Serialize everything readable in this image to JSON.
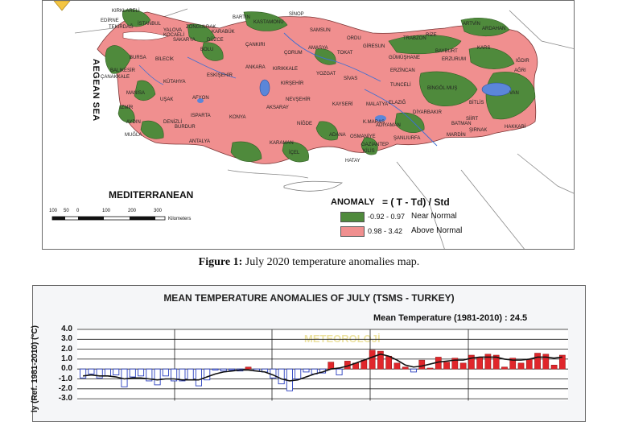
{
  "map": {
    "sea_labels": {
      "aegean": "AEGEAN SEA",
      "mediterranean": "MEDITERRANEAN"
    },
    "legend": {
      "title": "ANOMALY",
      "formula": "= ( T - Td) / Std",
      "classes": [
        {
          "range": "-0.92 - 0.97",
          "label": "Near Normal",
          "color": "#4f8a3c"
        },
        {
          "range": "0.98 - 3.42",
          "label": "Above Normal",
          "color": "#f08f8f"
        }
      ]
    },
    "scale_bar": {
      "ticks": [
        "100",
        "50",
        "0",
        "100",
        "200",
        "300"
      ],
      "unit": "Kilometers"
    },
    "cities": [
      "KIRKLARELİ",
      "EDİRNE",
      "TEKİRDAĞ",
      "İSTANBUL",
      "ZONGULDAK",
      "BARTIN",
      "KASTAMONU",
      "SİNOP",
      "KOCAELİ",
      "SAKARYA",
      "DÜZCE",
      "KARABÜK",
      "BOLU",
      "ÇANKIRI",
      "SAMSUN",
      "ORDU",
      "GİRESUN",
      "TRABZON",
      "RİZE",
      "ARTVİN",
      "ARDAHAN",
      "KARS",
      "IĞDIR",
      "AĞRI",
      "BAYBURT",
      "ERZURUM",
      "GÜMÜŞHANE",
      "ERZİNCAN",
      "TUNCELİ",
      "BİNGÖL",
      "MUŞ",
      "VAN",
      "BİTLİS",
      "SİİRT",
      "BATMAN",
      "HAKKARİ",
      "ŞIRNAK",
      "MARDİN",
      "DİYARBAKIR",
      "ELAZIĞ",
      "MALATYA",
      "ADIYAMAN",
      "ŞANLIURFA",
      "GAZİANTEP",
      "KİLİS",
      "HATAY",
      "OSMANİYE",
      "ADANA",
      "K.MARAŞ",
      "İÇEL",
      "KARAMAN",
      "NİĞDE",
      "KAYSERİ",
      "SİVAS",
      "TOKAT",
      "AMASYA",
      "ÇORUM",
      "YOZGAT",
      "KIRIKKALE",
      "ANKARA",
      "KIRŞEHİR",
      "NEVŞEHİR",
      "AKSARAY",
      "KONYA",
      "ISPARTA",
      "BURDUR",
      "ANTALYA",
      "MUĞLA",
      "DENİZLİ",
      "AYDIN",
      "İZMİR",
      "MANİSA",
      "UŞAK",
      "AFYON",
      "KÜTAHYA",
      "ESKİŞEHİR",
      "BİLECİK",
      "BURSA",
      "BALIKESİR",
      "ÇANAKKALE",
      "YALOVA"
    ]
  },
  "caption": {
    "prefix": "Figure 1:",
    "text": " July 2020 temperature anomalies map."
  },
  "chart": {
    "title": "MEAN TEMPERATURE ANOMALIES OF JULY (TSMS - TURKEY)",
    "note": "Mean Temperature (1981-2010) : 24.5",
    "ylabel": "ly (Ref. 1981-2010) (°C)",
    "watermark": "METEOROLOJİ",
    "colors": {
      "positive": "#e0262b",
      "negative": "#ffffff",
      "negative_edge": "#2a3fbf",
      "line": "#111111",
      "grid": "#1a1a1a"
    }
  },
  "chart_data": {
    "type": "bar",
    "ylabel": "ly (Ref. 1981-2010) (°C)",
    "y_ticks": [
      "4.0",
      "3.0",
      "2.0",
      "1.0",
      "0.0",
      "-1.0",
      "-2.0",
      "-3.0"
    ],
    "ylim": [
      -3.2,
      4.0
    ],
    "grid": true,
    "legend": "none",
    "values": [
      -0.9,
      -0.5,
      -0.9,
      -0.7,
      -0.6,
      -1.8,
      -0.8,
      -0.7,
      -1.2,
      -1.6,
      -0.7,
      -1.2,
      -1.2,
      -1.1,
      -1.7,
      -1.1,
      -0.1,
      -0.2,
      -0.1,
      -0.2,
      0.2,
      -0.2,
      -0.3,
      -0.9,
      -1.5,
      -2.2,
      -1.0,
      -0.3,
      -0.5,
      -0.4,
      0.7,
      -0.6,
      0.8,
      0.6,
      0.9,
      1.9,
      1.8,
      1.3,
      0.6,
      0.2,
      -0.3,
      0.9,
      0.1,
      1.2,
      0.7,
      1.1,
      0.6,
      1.4,
      1.2,
      1.5,
      1.4,
      0.2,
      1.1,
      0.6,
      1.0,
      1.6,
      1.5,
      0.4,
      1.4
    ],
    "moving_average": [
      -0.7,
      -0.6,
      -0.7,
      -0.7,
      -0.8,
      -1.0,
      -0.9,
      -0.9,
      -1.0,
      -1.1,
      -1.0,
      -1.0,
      -1.1,
      -1.1,
      -1.1,
      -0.8,
      -0.5,
      -0.3,
      -0.2,
      -0.1,
      -0.1,
      -0.2,
      -0.3,
      -0.6,
      -1.0,
      -1.2,
      -1.1,
      -0.8,
      -0.5,
      -0.3,
      0.0,
      0.1,
      0.3,
      0.6,
      0.9,
      1.2,
      1.5,
      1.3,
      0.9,
      0.4,
      0.2,
      0.3,
      0.5,
      0.7,
      0.8,
      0.9,
      0.9,
      1.1,
      1.2,
      1.2,
      1.2,
      1.0,
      0.9,
      0.9,
      1.0,
      1.2,
      1.2,
      1.1,
      1.2
    ]
  }
}
